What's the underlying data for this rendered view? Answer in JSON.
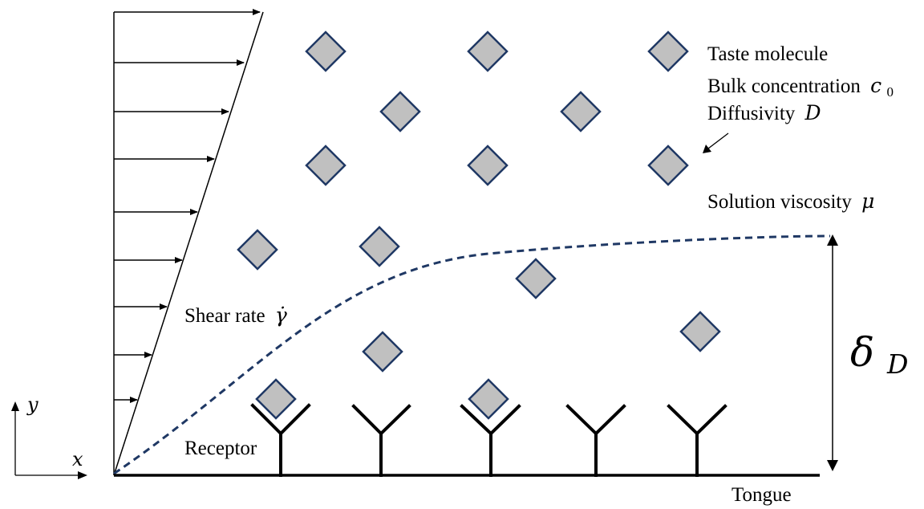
{
  "labels": {
    "taste_molecule": "Taste molecule",
    "bulk_concentration": "Bulk concentration",
    "bulk_concentration_symbol": "c",
    "bulk_concentration_subscript": "0",
    "diffusivity": "Diffusivity",
    "diffusivity_symbol": "D",
    "solution_viscosity": "Solution viscosity",
    "solution_viscosity_symbol": "μ",
    "shear_rate": "Shear rate",
    "shear_rate_symbol": "γ̇",
    "receptor": "Receptor",
    "tongue": "Tongue",
    "boundary_layer_symbol": "δ",
    "boundary_layer_subscript": "D",
    "axis_y": "y",
    "axis_x": "x"
  },
  "colors": {
    "molecule_fill": "#c0c0c0",
    "molecule_stroke": "#1f3864",
    "boundary_layer_curve": "#1f3864",
    "line": "#000000"
  }
}
